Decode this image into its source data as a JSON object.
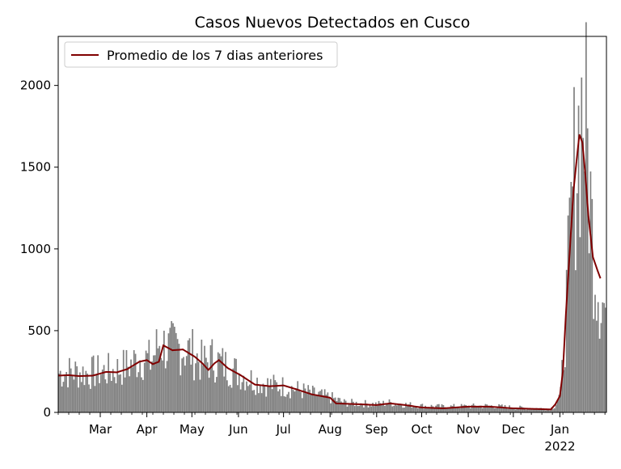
{
  "chart_data": {
    "type": "bar",
    "title": "Casos Nuevos Detectados en Cusco",
    "xlabel": "",
    "ylabel": "",
    "ylim": [
      0,
      2300
    ],
    "x_range": [
      "2021-02-01",
      "2022-02-01"
    ],
    "yticks": [
      0,
      500,
      1000,
      1500,
      2000
    ],
    "xticks": [
      {
        "date": "2021-03-01",
        "label": "Mar"
      },
      {
        "date": "2021-04-01",
        "label": "Apr"
      },
      {
        "date": "2021-05-01",
        "label": "May"
      },
      {
        "date": "2021-06-01",
        "label": "Jun"
      },
      {
        "date": "2021-07-01",
        "label": "Jul"
      },
      {
        "date": "2021-08-01",
        "label": "Aug"
      },
      {
        "date": "2021-09-01",
        "label": "Sep"
      },
      {
        "date": "2021-10-01",
        "label": "Oct"
      },
      {
        "date": "2021-11-01",
        "label": "Nov"
      },
      {
        "date": "2021-12-01",
        "label": "Dec"
      },
      {
        "date": "2022-01-01",
        "label": "Jan"
      }
    ],
    "year_label": "2022",
    "legend": {
      "label": "Promedio de los 7 dias anteriores",
      "position": "top-left"
    },
    "bar_color": "#808080",
    "line_color": "#800000",
    "grid": false,
    "bar_series_anchors": [
      [
        "2021-02-01",
        240
      ],
      [
        "2021-02-10",
        250
      ],
      [
        "2021-02-20",
        240
      ],
      [
        "2021-03-01",
        250
      ],
      [
        "2021-03-10",
        255
      ],
      [
        "2021-03-20",
        290
      ],
      [
        "2021-03-28",
        340
      ],
      [
        "2021-04-03",
        310
      ],
      [
        "2021-04-09",
        430
      ],
      [
        "2021-04-15",
        390
      ],
      [
        "2021-04-22",
        400
      ],
      [
        "2021-04-30",
        370
      ],
      [
        "2021-05-08",
        300
      ],
      [
        "2021-05-14",
        330
      ],
      [
        "2021-05-22",
        290
      ],
      [
        "2021-06-01",
        240
      ],
      [
        "2021-06-10",
        200
      ],
      [
        "2021-06-20",
        170
      ],
      [
        "2021-06-30",
        160
      ],
      [
        "2021-07-10",
        140
      ],
      [
        "2021-07-20",
        115
      ],
      [
        "2021-08-01",
        90
      ],
      [
        "2021-08-10",
        60
      ],
      [
        "2021-08-20",
        55
      ],
      [
        "2021-09-01",
        50
      ],
      [
        "2021-09-10",
        60
      ],
      [
        "2021-09-20",
        48
      ],
      [
        "2021-10-01",
        40
      ],
      [
        "2021-10-15",
        35
      ],
      [
        "2021-11-01",
        38
      ],
      [
        "2021-11-15",
        40
      ],
      [
        "2021-12-01",
        30
      ],
      [
        "2021-12-15",
        25
      ],
      [
        "2021-12-25",
        22
      ],
      [
        "2021-12-28",
        40
      ],
      [
        "2022-01-01",
        110
      ],
      [
        "2022-01-04",
        500
      ],
      [
        "2022-01-07",
        1000
      ],
      [
        "2022-01-10",
        1450
      ],
      [
        "2022-01-13",
        1700
      ],
      [
        "2022-01-16",
        1900
      ],
      [
        "2022-01-19",
        1600
      ],
      [
        "2022-01-22",
        1100
      ],
      [
        "2022-01-25",
        850
      ],
      [
        "2022-01-28",
        700
      ],
      [
        "2022-02-01",
        600
      ]
    ],
    "rolling_avg_anchors": [
      [
        "2021-02-01",
        225
      ],
      [
        "2021-02-08",
        228
      ],
      [
        "2021-02-15",
        222
      ],
      [
        "2021-02-24",
        225
      ],
      [
        "2021-03-05",
        248
      ],
      [
        "2021-03-12",
        245
      ],
      [
        "2021-03-19",
        265
      ],
      [
        "2021-03-27",
        310
      ],
      [
        "2021-04-01",
        320
      ],
      [
        "2021-04-05",
        295
      ],
      [
        "2021-04-09",
        310
      ],
      [
        "2021-04-12",
        410
      ],
      [
        "2021-04-18",
        380
      ],
      [
        "2021-04-25",
        385
      ],
      [
        "2021-05-03",
        340
      ],
      [
        "2021-05-08",
        300
      ],
      [
        "2021-05-12",
        260
      ],
      [
        "2021-05-16",
        300
      ],
      [
        "2021-05-19",
        320
      ],
      [
        "2021-05-25",
        270
      ],
      [
        "2021-06-02",
        230
      ],
      [
        "2021-06-12",
        170
      ],
      [
        "2021-06-22",
        160
      ],
      [
        "2021-07-01",
        165
      ],
      [
        "2021-07-10",
        140
      ],
      [
        "2021-07-20",
        110
      ],
      [
        "2021-08-01",
        90
      ],
      [
        "2021-08-05",
        55
      ],
      [
        "2021-08-20",
        50
      ],
      [
        "2021-09-01",
        45
      ],
      [
        "2021-09-10",
        55
      ],
      [
        "2021-09-20",
        45
      ],
      [
        "2021-10-01",
        30
      ],
      [
        "2021-10-15",
        25
      ],
      [
        "2021-11-01",
        35
      ],
      [
        "2021-11-15",
        35
      ],
      [
        "2021-12-01",
        25
      ],
      [
        "2021-12-20",
        20
      ],
      [
        "2021-12-26",
        18
      ],
      [
        "2021-12-29",
        50
      ],
      [
        "2022-01-01",
        100
      ],
      [
        "2022-01-03",
        250
      ],
      [
        "2022-01-05",
        600
      ],
      [
        "2022-01-08",
        1050
      ],
      [
        "2022-01-10",
        1350
      ],
      [
        "2022-01-12",
        1530
      ],
      [
        "2022-01-14",
        1700
      ],
      [
        "2022-01-16",
        1650
      ],
      [
        "2022-01-18",
        1450
      ],
      [
        "2022-01-20",
        1200
      ],
      [
        "2022-01-23",
        950
      ],
      [
        "2022-01-26",
        870
      ],
      [
        "2022-01-28",
        820
      ]
    ]
  }
}
